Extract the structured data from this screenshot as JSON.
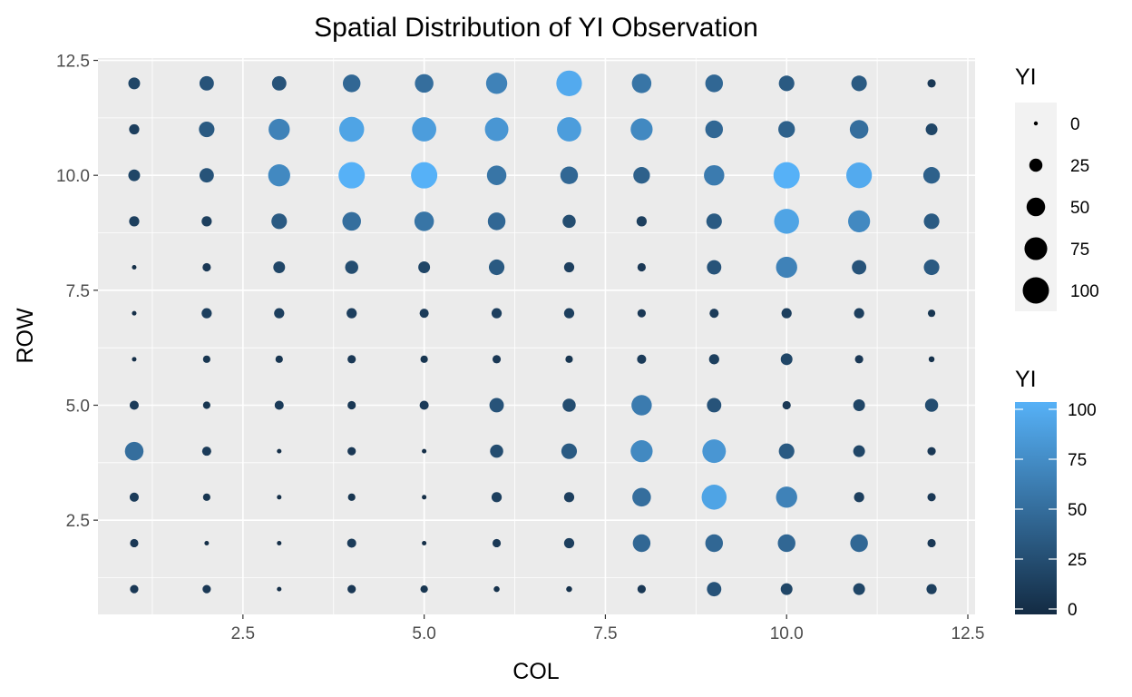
{
  "chart_data": {
    "type": "scatter",
    "title": "Spatial Distribution of YI Observation",
    "xlabel": "COL",
    "ylabel": "ROW",
    "xlim": [
      0.5,
      12.6
    ],
    "ylim": [
      0.45,
      12.55
    ],
    "x_ticks": [
      2.5,
      5.0,
      7.5,
      10.0,
      12.5
    ],
    "x_tick_labels": [
      "2.5",
      "5.0",
      "7.5",
      "10.0",
      "12.5"
    ],
    "y_ticks": [
      2.5,
      5.0,
      7.5,
      10.0,
      12.5
    ],
    "y_tick_labels": [
      "2.5",
      "5.0",
      "7.5",
      "10.0",
      "12.5"
    ],
    "grid": true,
    "legend_position": "right",
    "size_legend": {
      "title": "YI",
      "breaks": [
        0,
        25,
        50,
        75,
        100
      ],
      "labels": [
        "0",
        "25",
        "50",
        "75",
        "100"
      ]
    },
    "color_legend": {
      "title": "YI",
      "breaks": [
        0,
        25,
        50,
        75,
        100
      ],
      "labels": [
        "0",
        "25",
        "50",
        "75",
        "100"
      ],
      "low_color": "#132B43",
      "high_color": "#56B1F7"
    },
    "rows_top_to_bottom": [
      12,
      11,
      10,
      9,
      8,
      7,
      6,
      5,
      4,
      3,
      2,
      1
    ],
    "cols": [
      1,
      2,
      3,
      4,
      5,
      6,
      7,
      8,
      9,
      10,
      11,
      12
    ],
    "values": [
      [
        20,
        30,
        30,
        45,
        50,
        65,
        95,
        55,
        45,
        35,
        35,
        10
      ],
      [
        15,
        35,
        65,
        90,
        85,
        80,
        85,
        70,
        45,
        40,
        50,
        20
      ],
      [
        20,
        30,
        70,
        100,
        100,
        55,
        45,
        40,
        60,
        100,
        95,
        40
      ],
      [
        15,
        15,
        35,
        50,
        55,
        45,
        25,
        15,
        35,
        90,
        70,
        35
      ],
      [
        3,
        10,
        20,
        25,
        20,
        35,
        15,
        10,
        30,
        65,
        30,
        35
      ],
      [
        3,
        15,
        15,
        15,
        12,
        15,
        15,
        10,
        12,
        15,
        15,
        8
      ],
      [
        3,
        8,
        8,
        10,
        8,
        10,
        8,
        12,
        15,
        20,
        10,
        5
      ],
      [
        12,
        8,
        12,
        10,
        12,
        30,
        25,
        60,
        30,
        10,
        20,
        25
      ],
      [
        50,
        12,
        3,
        10,
        3,
        25,
        35,
        70,
        80,
        35,
        20,
        10
      ],
      [
        12,
        8,
        3,
        8,
        3,
        15,
        15,
        50,
        90,
        65,
        15,
        10
      ],
      [
        10,
        3,
        3,
        12,
        3,
        10,
        15,
        45,
        45,
        45,
        45,
        10
      ],
      [
        10,
        10,
        3,
        10,
        8,
        5,
        5,
        10,
        30,
        20,
        20,
        15
      ]
    ]
  }
}
